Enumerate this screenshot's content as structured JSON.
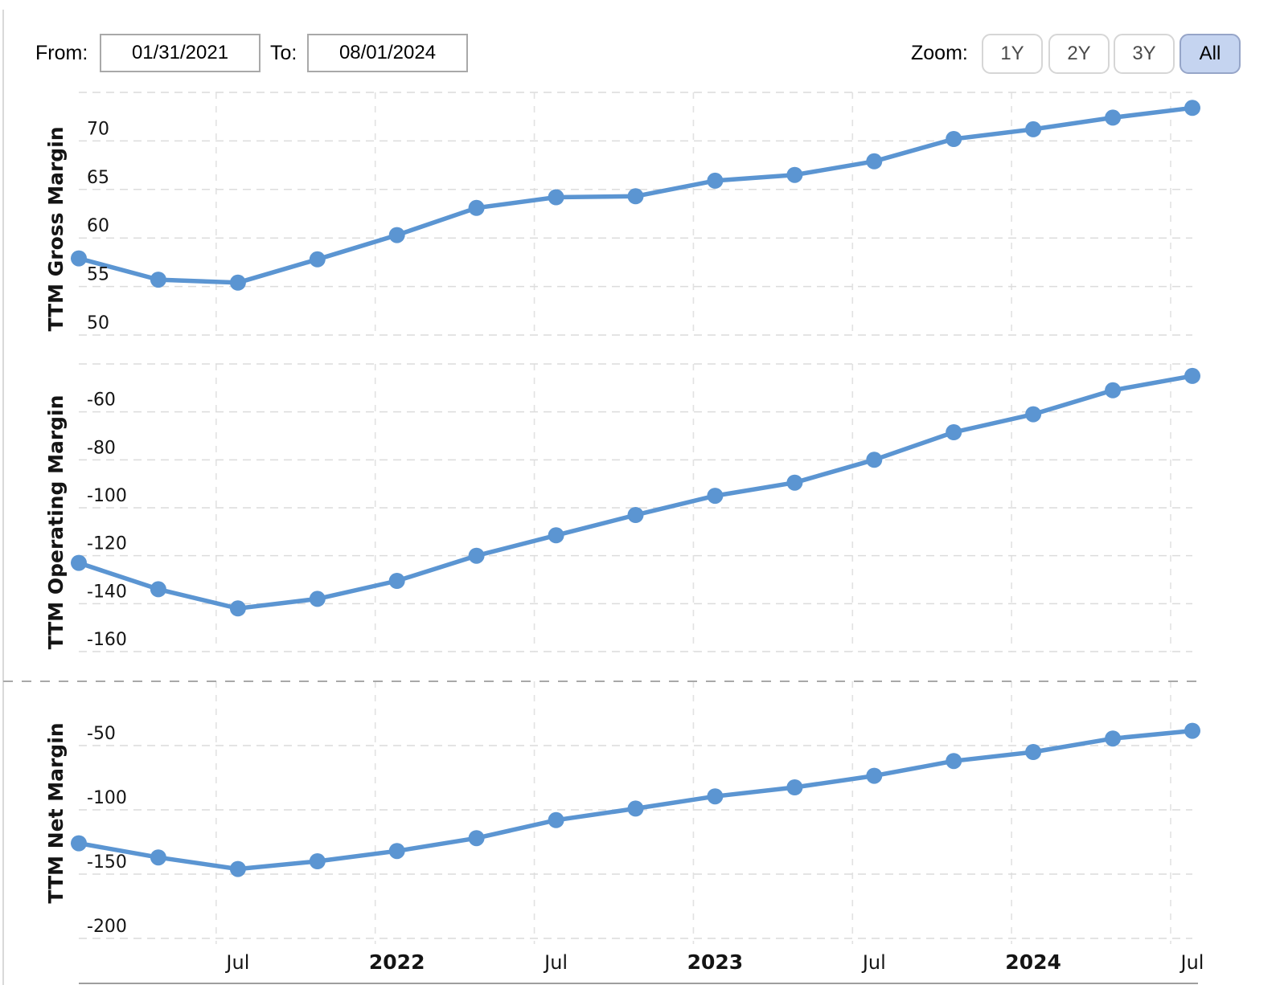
{
  "header": {
    "from_label": "From:",
    "from_value": "01/31/2021",
    "to_label": "To:",
    "to_value": "08/01/2024",
    "zoom_label": "Zoom:",
    "zoom_options": [
      {
        "label": "1Y",
        "active": false
      },
      {
        "label": "2Y",
        "active": false
      },
      {
        "label": "3Y",
        "active": false
      },
      {
        "label": "All",
        "active": true
      }
    ]
  },
  "colors": {
    "line": "#5b95d2",
    "grid_light": "#dcdcdc",
    "grid_vertical": "#e2e2e2",
    "separator": "#a8a8a8",
    "axis_line": "#9e9e9e",
    "zoom_active_bg": "#c5d4f0",
    "zoom_active_border": "#96a5c8"
  },
  "chart_data": {
    "type": "line",
    "x_dates": [
      "2021-01-31",
      "2021-04-30",
      "2021-07-31",
      "2021-10-31",
      "2022-01-31",
      "2022-04-30",
      "2022-07-31",
      "2022-10-31",
      "2023-01-31",
      "2023-04-30",
      "2023-07-31",
      "2023-10-31",
      "2024-01-31",
      "2024-04-30",
      "2024-07-31"
    ],
    "x_tick_labels": [
      {
        "text": "Jul",
        "bold": false,
        "index": 2
      },
      {
        "text": "2022",
        "bold": true,
        "index": 4
      },
      {
        "text": "Jul",
        "bold": false,
        "index": 6
      },
      {
        "text": "2023",
        "bold": true,
        "index": 8
      },
      {
        "text": "Jul",
        "bold": false,
        "index": 10
      },
      {
        "text": "2024",
        "bold": true,
        "index": 12
      },
      {
        "text": "Jul",
        "bold": false,
        "index": 14
      }
    ],
    "grid": true,
    "legend": "none",
    "panes": [
      {
        "ylabel": "TTM Gross Margin",
        "yticks": [
          70,
          65,
          60,
          55,
          50
        ],
        "ygrid_top": 75,
        "ylim": [
          46.9,
          75
        ],
        "values": [
          57.9,
          55.7,
          55.4,
          57.8,
          60.3,
          63.1,
          64.2,
          64.3,
          65.9,
          66.5,
          67.9,
          70.2,
          71.2,
          72.4,
          73.4
        ]
      },
      {
        "ylabel": "TTM Operating Margin",
        "yticks": [
          -60,
          -80,
          -100,
          -120,
          -140,
          -160
        ],
        "ygrid_top": -40,
        "ylim": [
          -172.5,
          -40
        ],
        "values": [
          -123,
          -134,
          -142,
          -138,
          -130.5,
          -120,
          -111.5,
          -103,
          -95,
          -89.5,
          -80,
          -68.5,
          -61,
          -51,
          -45
        ]
      },
      {
        "ylabel": "TTM Net Margin",
        "yticks": [
          -50,
          -100,
          -150,
          -200
        ],
        "ygrid_top": 0,
        "ylim": [
          -204,
          0
        ],
        "values": [
          -126,
          -137,
          -146,
          -140,
          -132,
          -122,
          -108,
          -99,
          -89.5,
          -82.5,
          -73.5,
          -62,
          -55,
          -44.5,
          -38.5
        ]
      }
    ]
  }
}
